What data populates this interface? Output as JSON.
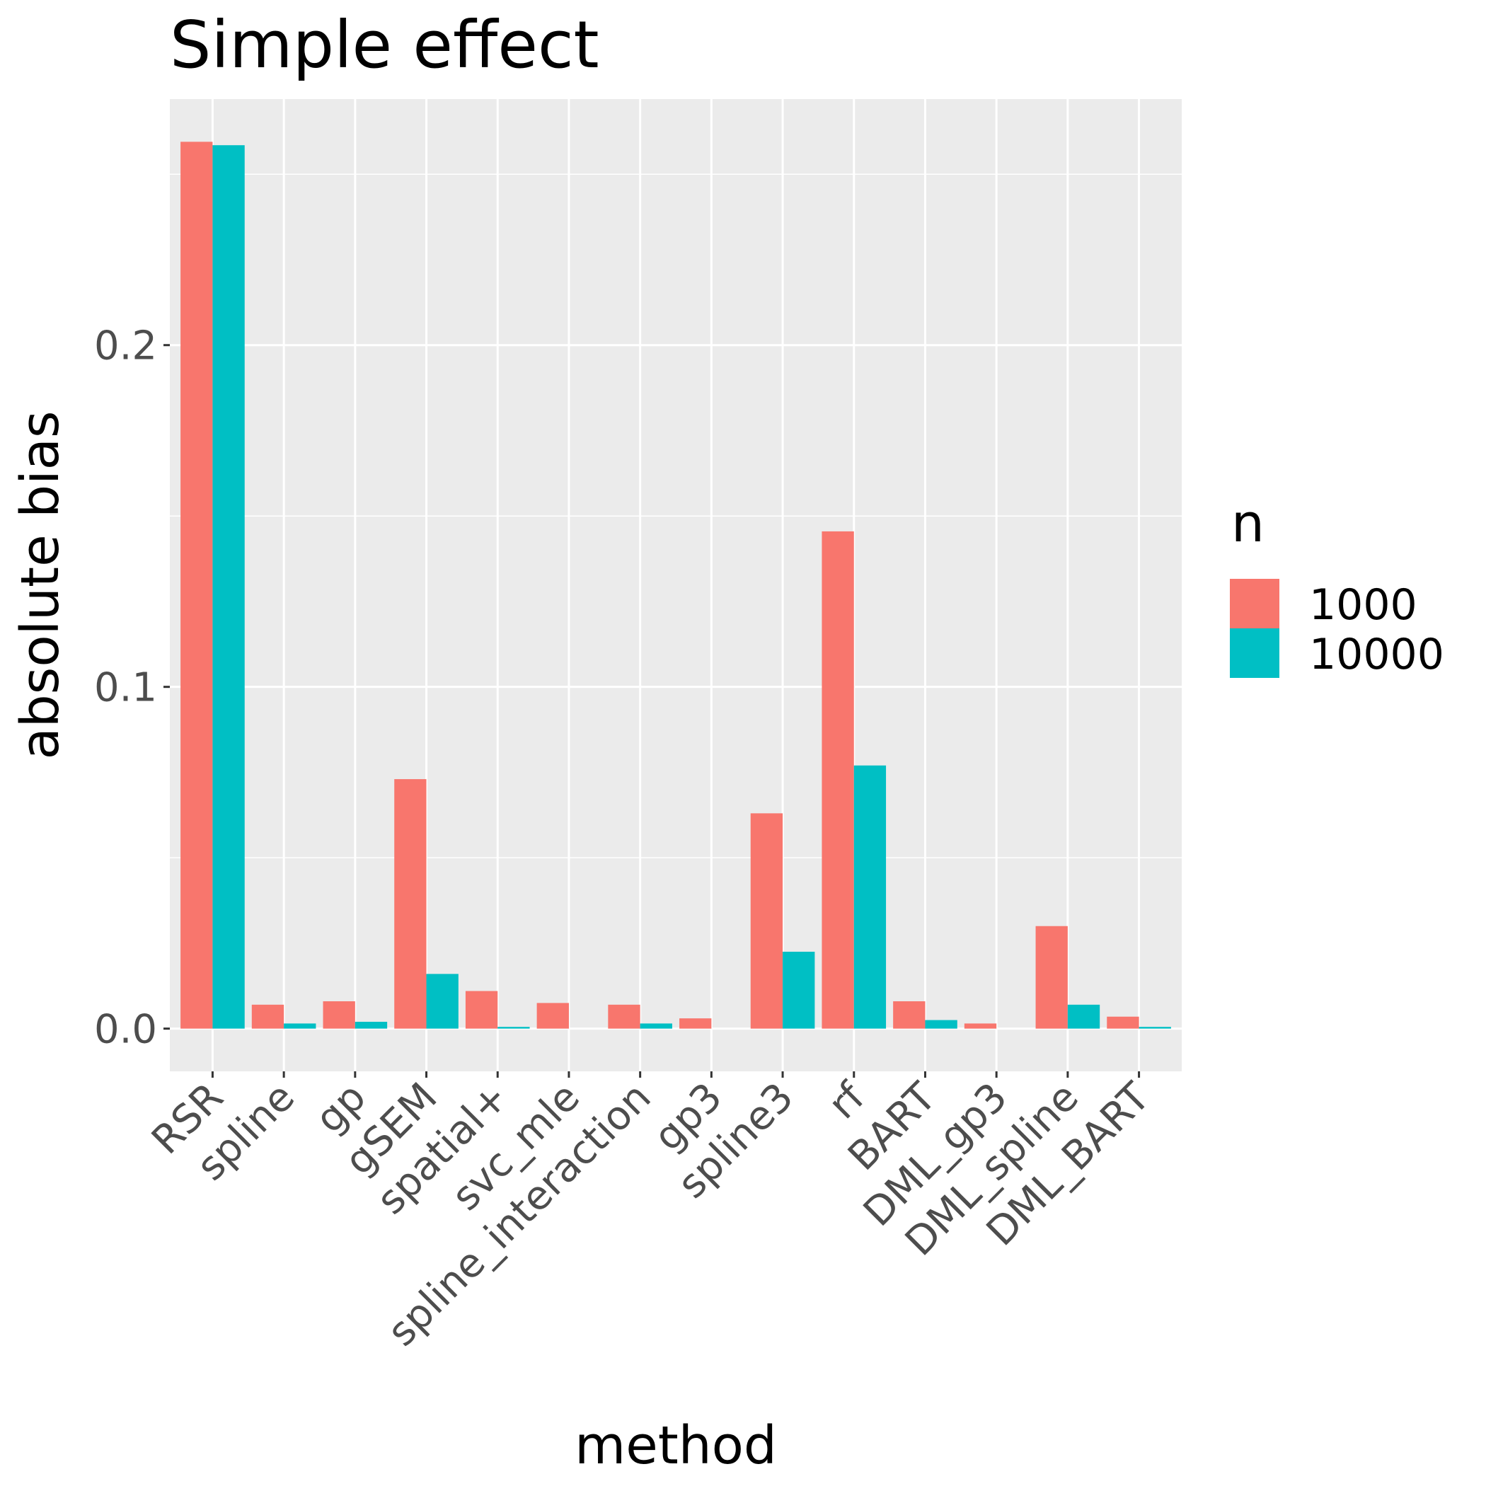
{
  "chart_data": {
    "type": "bar",
    "title": "Simple effect",
    "xlabel": "method",
    "ylabel": "absolute bias",
    "categories": [
      "RSR",
      "spline",
      "gp",
      "gSEM",
      "spatial+",
      "svc_mle",
      "spline_interaction",
      "gp3",
      "spline3",
      "rf",
      "BART",
      "DML_gp3",
      "DML_spline",
      "DML_BART"
    ],
    "series": [
      {
        "name": "1000",
        "color": "#F8766D",
        "values": [
          0.2595,
          0.007,
          0.008,
          0.073,
          0.011,
          0.0075,
          0.007,
          0.003,
          0.063,
          0.1455,
          0.008,
          0.0015,
          0.03,
          0.0035
        ]
      },
      {
        "name": "10000",
        "color": "#00BFC4",
        "values": [
          0.2585,
          0.0015,
          0.002,
          0.016,
          0.0005,
          0.0,
          0.0015,
          0.0,
          0.0225,
          0.077,
          0.0025,
          0.0,
          0.007,
          0.0005
        ]
      }
    ],
    "ylim": [
      -0.0125,
      0.272
    ],
    "yticks": [
      0.0,
      0.1,
      0.2
    ],
    "ytick_labels": [
      "0.0",
      "0.1",
      "0.2"
    ],
    "grid": true,
    "legend": {
      "title": "n",
      "position": "right"
    }
  }
}
